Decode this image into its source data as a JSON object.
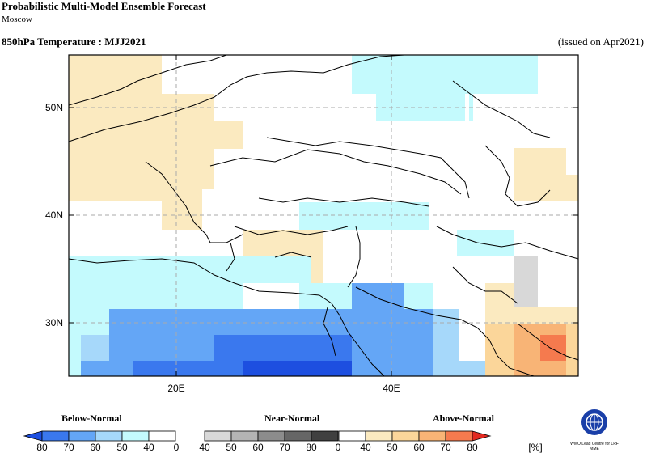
{
  "header": {
    "title": "Probabilistic Multi-Model Ensemble Forecast",
    "subtitle": "Moscow",
    "variable": "850hPa Temperature : MJJ2021",
    "issued": "(issued on Apr2021)"
  },
  "map": {
    "lat_labels": [
      "50N",
      "40N",
      "30N"
    ],
    "lon_labels": [
      "20E",
      "40E"
    ]
  },
  "legend": {
    "below_label": "Below-Normal",
    "near_label": "Near-Normal",
    "above_label": "Above-Normal",
    "ticks": [
      "80",
      "70",
      "60",
      "50",
      "40",
      "0",
      "40",
      "50",
      "60",
      "70",
      "80",
      "0",
      "40",
      "50",
      "60",
      "70",
      "80"
    ],
    "unit": "[%]",
    "colors": {
      "below": [
        "#1d4fe0",
        "#3a78ee",
        "#64a6f6",
        "#a6d8fa",
        "#c4fafd"
      ],
      "near": [
        "#d8d8d8",
        "#b4b4b4",
        "#8c8c8c",
        "#666666",
        "#404040"
      ],
      "above": [
        "#fbeac0",
        "#fbd69a",
        "#f8b476",
        "#f57a4e",
        "#e22a20"
      ]
    }
  },
  "logo": {
    "text": "WMO Lead Centre for LRF MME"
  }
}
